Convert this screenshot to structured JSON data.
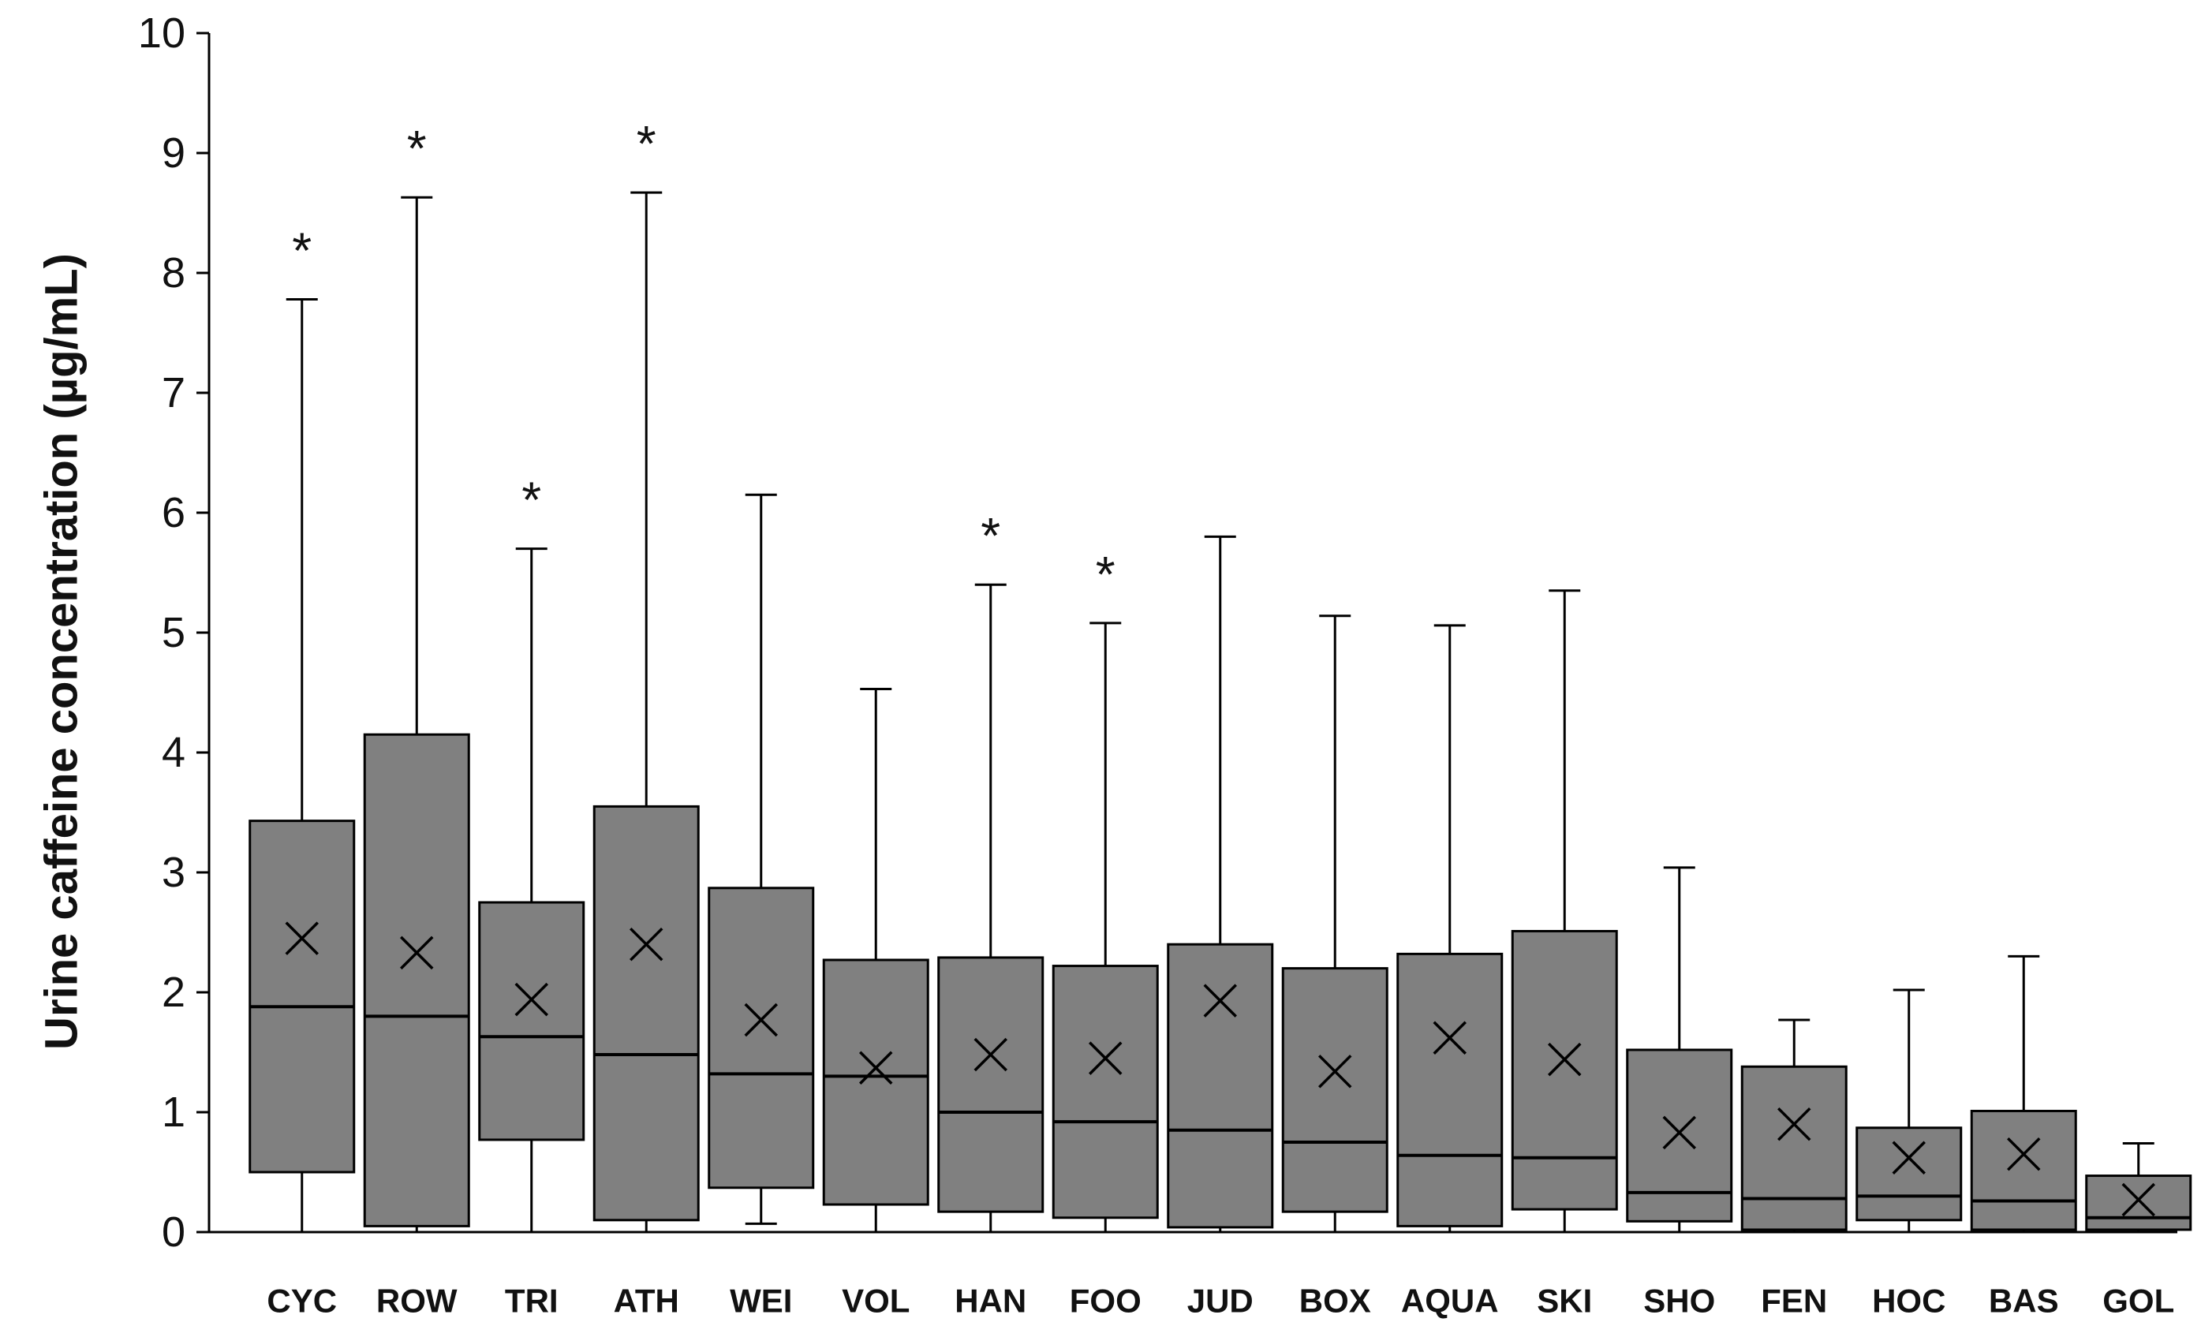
{
  "chart_data": {
    "type": "boxplot",
    "title": "",
    "xlabel": "",
    "ylabel": "Urine caffeine concentration (µg/mL)",
    "ylim": [
      0,
      10
    ],
    "yticks": [
      0,
      1,
      2,
      3,
      4,
      5,
      6,
      7,
      8,
      9,
      10
    ],
    "grid": false,
    "colors": {
      "box": "#808080",
      "stroke": "#000000"
    },
    "categories": [
      "CYC",
      "ROW",
      "TRI",
      "ATH",
      "WEI",
      "VOL",
      "HAN",
      "FOO",
      "JUD",
      "BOX",
      "AQUA",
      "SKI",
      "SHO",
      "FEN",
      "HOC",
      "BAS",
      "GOL"
    ],
    "boxes": [
      {
        "name": "CYC",
        "min": 0.0,
        "q1": 0.5,
        "median": 1.88,
        "q3": 3.43,
        "max": 7.78,
        "mean": 2.45,
        "significant": true
      },
      {
        "name": "ROW",
        "min": 0.0,
        "q1": 0.05,
        "median": 1.8,
        "q3": 4.15,
        "max": 8.63,
        "mean": 2.33,
        "significant": true
      },
      {
        "name": "TRI",
        "min": 0.0,
        "q1": 0.77,
        "median": 1.63,
        "q3": 2.75,
        "max": 5.7,
        "mean": 1.94,
        "significant": true
      },
      {
        "name": "ATH",
        "min": 0.0,
        "q1": 0.1,
        "median": 1.48,
        "q3": 3.55,
        "max": 8.67,
        "mean": 2.4,
        "significant": true
      },
      {
        "name": "WEI",
        "min": 0.07,
        "q1": 0.37,
        "median": 1.32,
        "q3": 2.87,
        "max": 6.15,
        "mean": 1.77,
        "significant": false
      },
      {
        "name": "VOL",
        "min": 0.0,
        "q1": 0.23,
        "median": 1.3,
        "q3": 2.27,
        "max": 4.53,
        "mean": 1.37,
        "significant": false
      },
      {
        "name": "HAN",
        "min": 0.0,
        "q1": 0.17,
        "median": 1.0,
        "q3": 2.29,
        "max": 5.4,
        "mean": 1.48,
        "significant": true
      },
      {
        "name": "FOO",
        "min": 0.0,
        "q1": 0.12,
        "median": 0.92,
        "q3": 2.22,
        "max": 5.08,
        "mean": 1.45,
        "significant": true
      },
      {
        "name": "JUD",
        "min": 0.0,
        "q1": 0.04,
        "median": 0.85,
        "q3": 2.4,
        "max": 5.8,
        "mean": 1.93,
        "significant": false
      },
      {
        "name": "BOX",
        "min": 0.0,
        "q1": 0.17,
        "median": 0.75,
        "q3": 2.2,
        "max": 5.14,
        "mean": 1.34,
        "significant": false
      },
      {
        "name": "AQUA",
        "min": 0.0,
        "q1": 0.05,
        "median": 0.64,
        "q3": 2.32,
        "max": 5.06,
        "mean": 1.62,
        "significant": false
      },
      {
        "name": "SKI",
        "min": 0.0,
        "q1": 0.19,
        "median": 0.62,
        "q3": 2.51,
        "max": 5.35,
        "mean": 1.44,
        "significant": false
      },
      {
        "name": "SHO",
        "min": 0.0,
        "q1": 0.09,
        "median": 0.33,
        "q3": 1.52,
        "max": 3.04,
        "mean": 0.83,
        "significant": false
      },
      {
        "name": "FEN",
        "min": 0.0,
        "q1": 0.02,
        "median": 0.28,
        "q3": 1.38,
        "max": 1.77,
        "mean": 0.9,
        "significant": false
      },
      {
        "name": "HOC",
        "min": 0.0,
        "q1": 0.1,
        "median": 0.3,
        "q3": 0.87,
        "max": 2.02,
        "mean": 0.62,
        "significant": false
      },
      {
        "name": "BAS",
        "min": 0.0,
        "q1": 0.02,
        "median": 0.26,
        "q3": 1.01,
        "max": 2.3,
        "mean": 0.65,
        "significant": false
      },
      {
        "name": "GOL",
        "min": 0.0,
        "q1": 0.02,
        "median": 0.12,
        "q3": 0.47,
        "max": 0.74,
        "mean": 0.27,
        "significant": false
      }
    ],
    "annotation_symbol": "*"
  }
}
